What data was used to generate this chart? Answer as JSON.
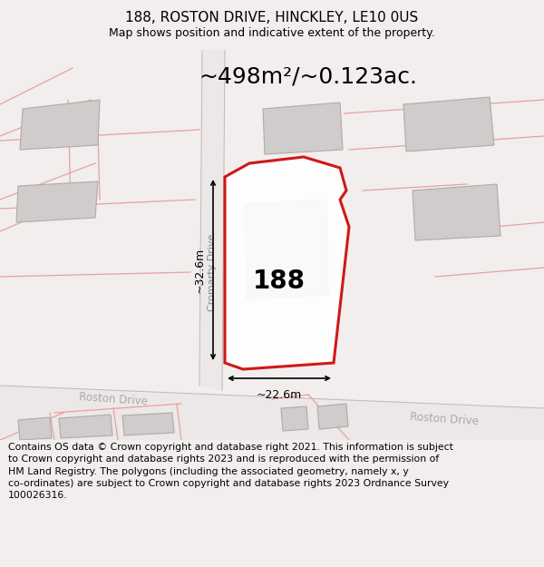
{
  "title": "188, ROSTON DRIVE, HINCKLEY, LE10 0US",
  "subtitle": "Map shows position and indicative extent of the property.",
  "area_label": "~498m²/~0.123ac.",
  "property_number": "188",
  "dim_width": "~22.6m",
  "dim_height": "~32.6m",
  "street1": "Cromarty Drive",
  "street2": "Roston Drive",
  "street2b": "Roston Drive",
  "footer": "Contains OS data © Crown copyright and database right 2021. This information is subject\nto Crown copyright and database rights 2023 and is reproduced with the permission of\nHM Land Registry. The polygons (including the associated geometry, namely x, y\nco-ordinates) are subject to Crown copyright and database rights 2023 Ordnance Survey\n100026316.",
  "bg_color": "#f2eeee",
  "map_bg": "#f8f4f4",
  "road_fill": "#ede5e5",
  "plot_outline_color": "#cc0000",
  "building_fill": "#d0cccc",
  "building_outline": "#b0aaaa",
  "pink_line": "#e8a0a0",
  "gray_line": "#c0b8b8",
  "title_fontsize": 11,
  "subtitle_fontsize": 9,
  "footer_fontsize": 7.8,
  "label_color": "#888888"
}
